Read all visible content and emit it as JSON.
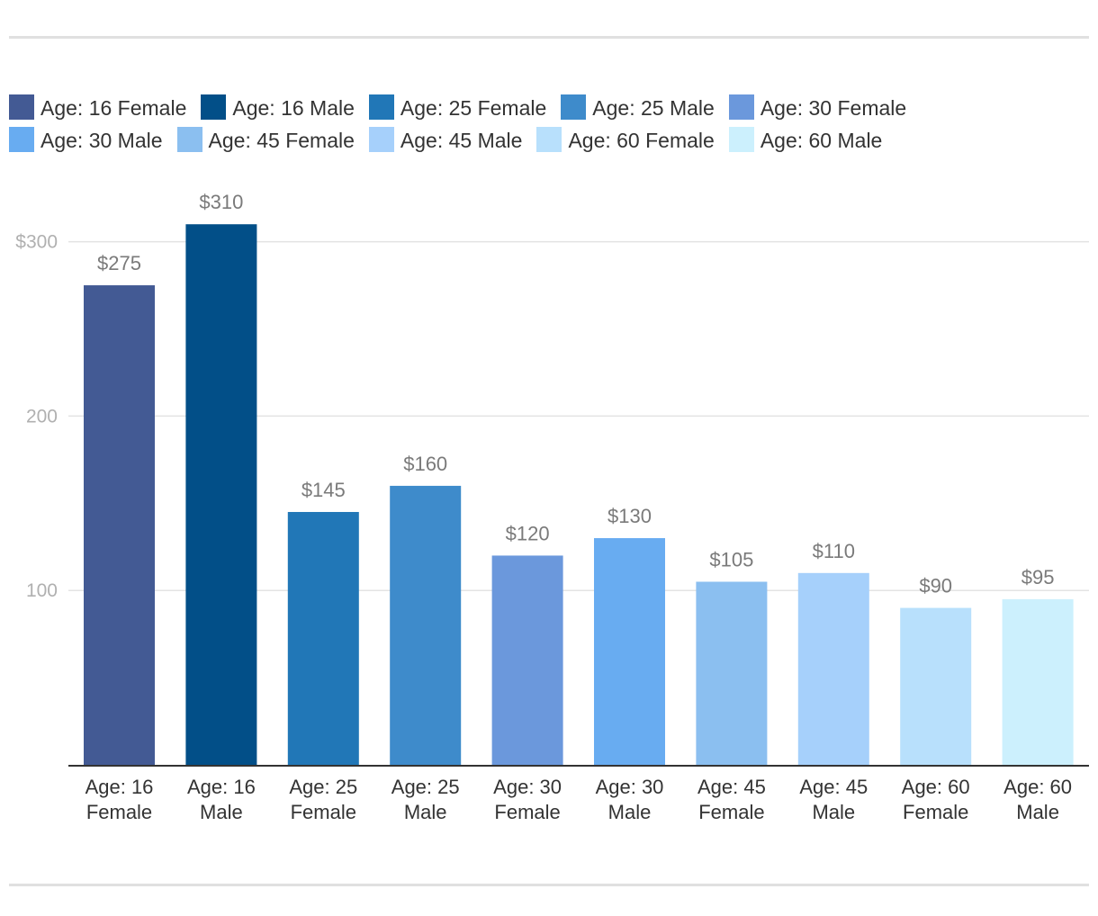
{
  "chart_data": {
    "type": "bar",
    "categories": [
      [
        "Age: 16",
        "Female"
      ],
      [
        "Age: 16",
        "Male"
      ],
      [
        "Age: 25",
        "Female"
      ],
      [
        "Age: 25",
        "Male"
      ],
      [
        "Age: 30",
        "Female"
      ],
      [
        "Age: 30",
        "Male"
      ],
      [
        "Age: 45",
        "Female"
      ],
      [
        "Age: 45",
        "Male"
      ],
      [
        "Age: 60",
        "Female"
      ],
      [
        "Age: 60",
        "Male"
      ]
    ],
    "values": [
      275,
      310,
      145,
      160,
      120,
      130,
      105,
      110,
      90,
      95
    ],
    "data_labels": [
      "$275",
      "$310",
      "$145",
      "$160",
      "$120",
      "$130",
      "$105",
      "$110",
      "$90",
      "$95"
    ],
    "legend": [
      "Age: 16 Female",
      "Age: 16 Male",
      "Age: 25 Female",
      "Age: 25 Male",
      "Age: 30 Female",
      "Age: 30 Male",
      "Age: 45 Female",
      "Age: 45 Male",
      "Age: 60 Female",
      "Age: 60 Male"
    ],
    "colors": [
      "#435a94",
      "#024f88",
      "#2177b7",
      "#3e8bcb",
      "#6b98dc",
      "#68acf1",
      "#8bbff0",
      "#a6d0fb",
      "#b8e0fc",
      "#ccf0fd"
    ],
    "y_ticks": [
      {
        "value": 100,
        "label": "100"
      },
      {
        "value": 200,
        "label": "200"
      },
      {
        "value": 300,
        "label": "$300"
      }
    ],
    "ylim": [
      0,
      300
    ],
    "grid": true,
    "legend_position": "top",
    "title": "",
    "xlabel": "",
    "ylabel": ""
  }
}
